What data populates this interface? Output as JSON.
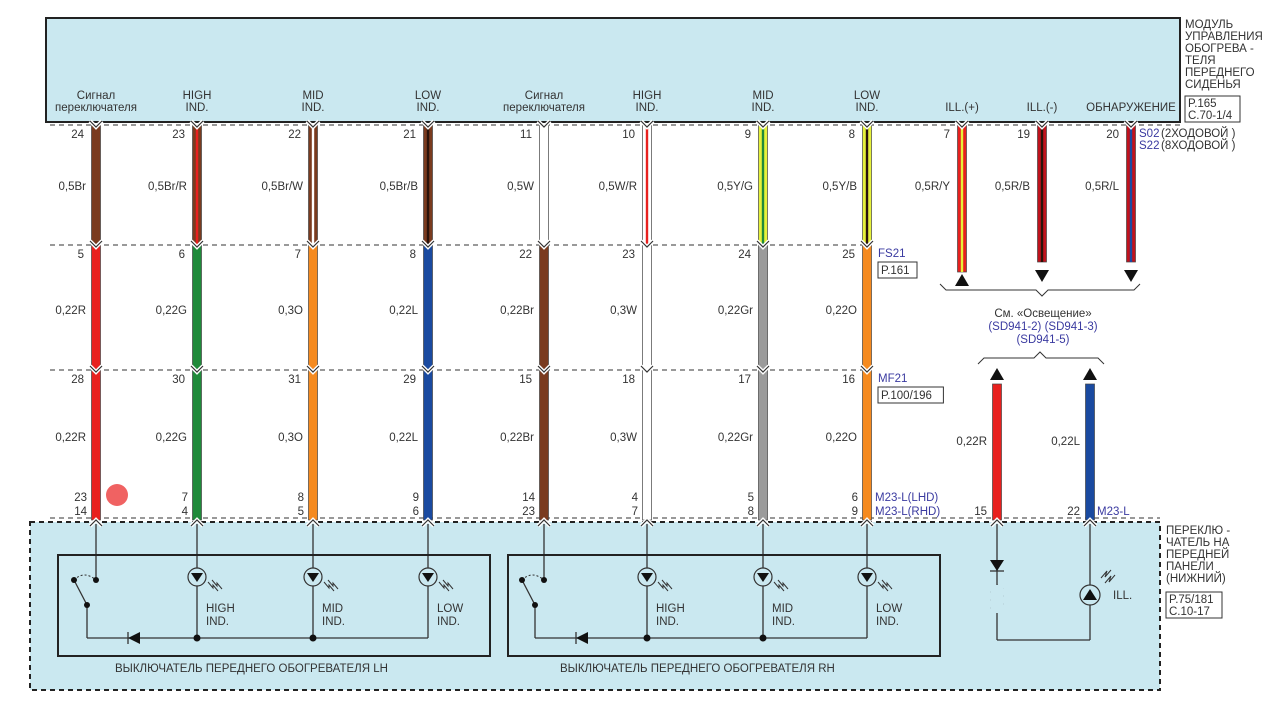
{
  "module": {
    "title_lines": [
      "МОДУЛЬ",
      "УПРАВЛЕНИЯ",
      "ОБОГРЕВА  -",
      "ТЕЛЯ",
      "ПЕРЕДНЕГО",
      "СИДЕНЬЯ"
    ],
    "ref_lines": [
      "P.165",
      "C.70-1/4"
    ],
    "variant_lines": [
      {
        "code": "S02",
        "text": "(2ХОДОВОЙ )"
      },
      {
        "code": "S22",
        "text": "(8ХОДОВОЙ )"
      }
    ]
  },
  "colors": {
    "Br": "#7a3b1f",
    "R": "#e8201e",
    "G": "#1f8a3a",
    "O": "#f58a1f",
    "L": "#1a4aa0",
    "W": "#ffffff",
    "Gr": "#9b9b9b",
    "Y": "#e6f23a",
    "B": "#2a120a",
    "darkR": "#c0121c",
    "panel": "#cae8f0",
    "accent_text": "#3a3aa0",
    "touch_dot": "#f06262"
  },
  "columns": [
    {
      "header": [
        "Сигнал",
        "переключателя"
      ],
      "pins": [
        "24",
        "5",
        "28"
      ],
      "bottom_pins": [
        "23",
        "14"
      ],
      "labels": [
        "0,5Br",
        "0,22R",
        "0,22R"
      ],
      "wires": [
        [
          "Br",
          null
        ],
        [
          "R",
          null
        ],
        [
          "R",
          null
        ]
      ]
    },
    {
      "header": [
        "HIGH",
        "IND."
      ],
      "pins": [
        "23",
        "6",
        "30"
      ],
      "bottom_pins": [
        "7",
        "4"
      ],
      "labels": [
        "0,5Br/R",
        "0,22G",
        "0,22G"
      ],
      "wires": [
        [
          "Br",
          "R"
        ],
        [
          "G",
          null
        ],
        [
          "G",
          null
        ]
      ]
    },
    {
      "header": [
        "MID",
        "IND."
      ],
      "pins": [
        "22",
        "7",
        "31"
      ],
      "bottom_pins": [
        "8",
        "5"
      ],
      "labels": [
        "0,5Br/W",
        "0,3O",
        "0,3O"
      ],
      "wires": [
        [
          "Br",
          "W"
        ],
        [
          "O",
          null
        ],
        [
          "O",
          null
        ]
      ]
    },
    {
      "header": [
        "LOW",
        "IND."
      ],
      "pins": [
        "21",
        "8",
        "29"
      ],
      "bottom_pins": [
        "9",
        "6"
      ],
      "labels": [
        "0,5Br/B",
        "0,22L",
        "0,22L"
      ],
      "wires": [
        [
          "Br",
          "B"
        ],
        [
          "L",
          null
        ],
        [
          "L",
          null
        ]
      ]
    },
    {
      "header": [
        "Сигнал",
        "переключателя"
      ],
      "pins": [
        "11",
        "22",
        "15"
      ],
      "bottom_pins": [
        "14",
        "23"
      ],
      "labels": [
        "0,5W",
        "0,22Br",
        "0,22Br"
      ],
      "wires": [
        [
          "W",
          null
        ],
        [
          "Br",
          null
        ],
        [
          "Br",
          null
        ]
      ]
    },
    {
      "header": [
        "HIGH",
        "IND."
      ],
      "pins": [
        "10",
        "23",
        "18"
      ],
      "bottom_pins": [
        "4",
        "7"
      ],
      "labels": [
        "0,5W/R",
        "0,3W",
        "0,3W"
      ],
      "wires": [
        [
          "W",
          "R"
        ],
        [
          "W",
          null
        ],
        [
          "W",
          null
        ]
      ]
    },
    {
      "header": [
        "MID",
        "IND."
      ],
      "pins": [
        "9",
        "24",
        "17"
      ],
      "bottom_pins": [
        "5",
        "8"
      ],
      "labels": [
        "0,5Y/G",
        "0,22Gr",
        "0,22Gr"
      ],
      "wires": [
        [
          "Y",
          "G"
        ],
        [
          "Gr",
          null
        ],
        [
          "Gr",
          null
        ]
      ]
    },
    {
      "header": [
        "LOW",
        "IND."
      ],
      "pins": [
        "8",
        "25",
        "16"
      ],
      "bottom_pins": [
        "6",
        "9"
      ],
      "labels": [
        "0,5Y/B",
        "0,22O",
        "0,22O"
      ],
      "wires": [
        [
          "Y",
          "B"
        ],
        [
          "O",
          null
        ],
        [
          "O",
          null
        ]
      ]
    }
  ],
  "connectors": {
    "fs": {
      "code": "FS21",
      "ref": "P.161"
    },
    "mf": {
      "code": "MF21",
      "ref": "P.100/196"
    },
    "m23_lhd": "M23-L(LHD)",
    "m23_rhd": "M23-L(RHD)",
    "m23": "M23-L"
  },
  "ill_columns": [
    {
      "header": "ILL.(+)",
      "pin": "7",
      "label": "0,5R/Y",
      "wire": [
        "R",
        "Y"
      ],
      "arrow": "up"
    },
    {
      "header": "ILL.(-)",
      "pin": "19",
      "label": "0,5R/B",
      "wire": [
        "darkR",
        "B"
      ],
      "arrow": "down"
    },
    {
      "header": "ОБНАРУЖЕНИЕ",
      "pin": "20",
      "label": "0,5R/L",
      "wire": [
        "darkR",
        "L"
      ],
      "arrow": "down"
    }
  ],
  "lighting_ref": {
    "see": "См. «Освещение»",
    "refs1": "(SD941-2) (SD941-3)",
    "refs2": "(SD941-5)"
  },
  "lower_ill": [
    {
      "pin": "15",
      "label": "0,22R",
      "wire": "R"
    },
    {
      "pin": "22",
      "label": "0,22L",
      "wire": "L"
    }
  ],
  "panel_switch": {
    "title_lines": [
      "ПЕРЕКЛЮ -",
      "ЧАТЕЛЬ  НА",
      "ПЕРЕДНЕЙ",
      "ПАНЕЛИ",
      "(НИЖНИЙ)"
    ],
    "ref_lines": [
      "P.75/181",
      "C.10-17"
    ],
    "ill_label": "ILL."
  },
  "switches": [
    {
      "title": "ВЫКЛЮЧАТЕЛЬ   ПЕРЕДНЕГО   ОБОГРЕВАТЕЛЯ   LH",
      "ind": [
        [
          "HIGH",
          "IND."
        ],
        [
          "MID",
          "IND."
        ],
        [
          "LOW",
          "IND."
        ]
      ]
    },
    {
      "title": "ВЫКЛЮЧАТЕЛЬ   ПЕРЕДНЕГО   ОБОГРЕВАТЕЛЯ   RH",
      "ind": [
        [
          "HIGH",
          "IND."
        ],
        [
          "MID",
          "IND."
        ],
        [
          "LOW",
          "IND."
        ]
      ]
    }
  ]
}
